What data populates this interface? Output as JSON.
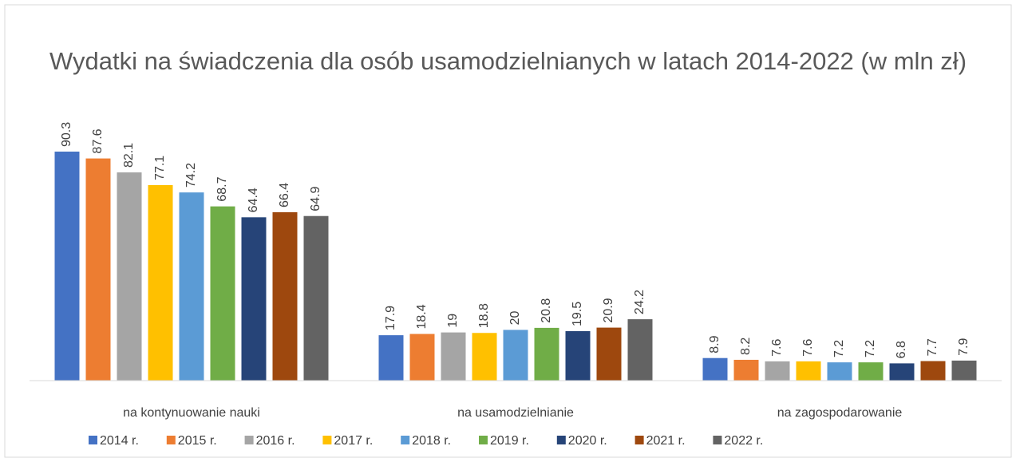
{
  "chart_data": {
    "type": "bar",
    "title": "Wydatki na świadczenia dla osób usamodzielnianych w latach 2014-2022 (w mln zł)",
    "categories": [
      "na kontynuowanie nauki",
      "na usamodzielnianie",
      "na zagospodarowanie"
    ],
    "series": [
      {
        "name": "2014 r.",
        "color": "#4472c4",
        "values": [
          90.3,
          17.9,
          8.9
        ]
      },
      {
        "name": "2015 r.",
        "color": "#ed7d31",
        "values": [
          87.6,
          18.4,
          8.2
        ]
      },
      {
        "name": "2016 r.",
        "color": "#a5a5a5",
        "values": [
          82.1,
          19,
          7.6
        ]
      },
      {
        "name": "2017 r.",
        "color": "#ffc000",
        "values": [
          77.1,
          18.8,
          7.6
        ]
      },
      {
        "name": "2018 r.",
        "color": "#5b9bd5",
        "values": [
          74.2,
          20,
          7.2
        ]
      },
      {
        "name": "2019 r.",
        "color": "#70ad47",
        "values": [
          68.7,
          20.8,
          7.2
        ]
      },
      {
        "name": "2020 r.",
        "color": "#264478",
        "values": [
          64.4,
          19.5,
          6.8
        ]
      },
      {
        "name": "2021 r.",
        "color": "#9e480e",
        "values": [
          66.4,
          20.9,
          7.7
        ]
      },
      {
        "name": "2022 r.",
        "color": "#636363",
        "values": [
          64.9,
          24.2,
          7.9
        ]
      }
    ],
    "legend": "bottom"
  }
}
